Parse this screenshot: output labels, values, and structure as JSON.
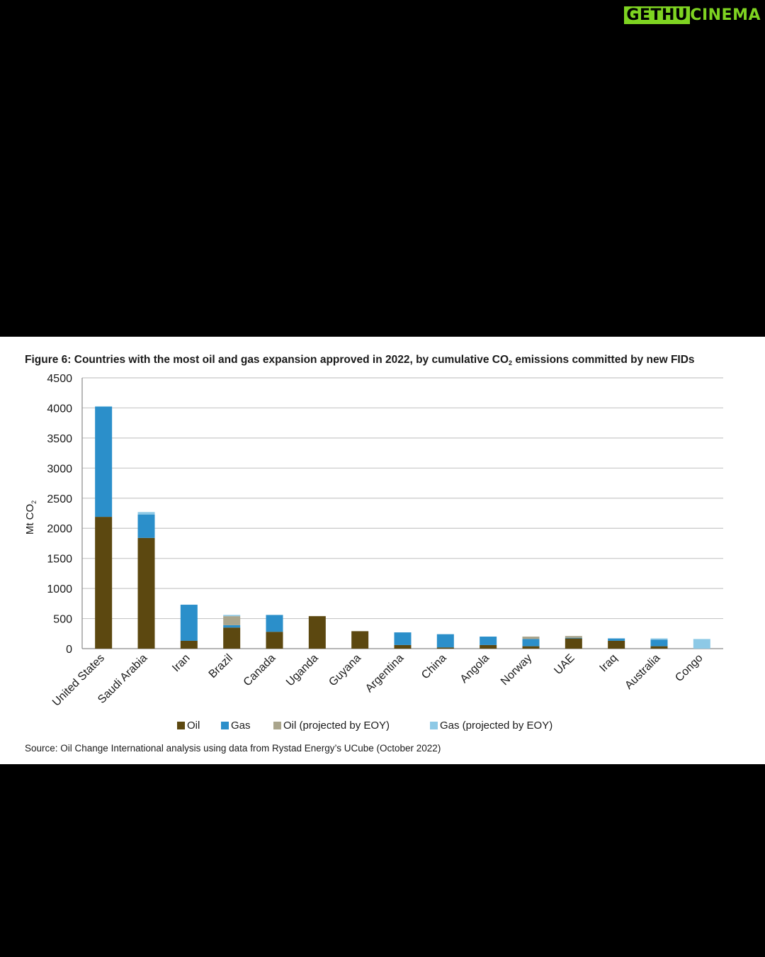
{
  "watermark": {
    "part1": "GETHU",
    "part2": "CINEMA"
  },
  "figure": {
    "title_before": "Figure 6: Countries with the most oil and gas expansion approved in 2022, by cumulative CO",
    "title_sub": "2",
    "title_after": " emissions committed by new FIDs",
    "source": "Source: Oil Change International analysis using data from Rystad Energy’s UCube (October 2022)"
  },
  "chart_data": {
    "type": "bar",
    "stacked": true,
    "title": "Figure 6: Countries with the most oil and gas expansion approved in 2022, by cumulative CO2 emissions committed by new FIDs",
    "ylabel": "Mt CO2",
    "ylim": [
      0,
      4500
    ],
    "yticks": [
      0,
      500,
      1000,
      1500,
      2000,
      2500,
      3000,
      3500,
      4000,
      4500
    ],
    "grid": true,
    "legend_position": "bottom",
    "categories": [
      "United States",
      "Saudi Arabia",
      "Iran",
      "Brazil",
      "Canada",
      "Uganda",
      "Guyana",
      "Argentina",
      "China",
      "Angola",
      "Norway",
      "UAE",
      "Iraq",
      "Australia",
      "Congo"
    ],
    "series": [
      {
        "name": "Oil",
        "color": "#5c4810",
        "values": [
          2190,
          1840,
          130,
          350,
          280,
          540,
          290,
          60,
          20,
          60,
          40,
          170,
          130,
          40,
          0
        ]
      },
      {
        "name": "Gas",
        "color": "#2b8fca",
        "values": [
          1830,
          390,
          600,
          40,
          280,
          0,
          0,
          210,
          220,
          140,
          120,
          10,
          40,
          110,
          0
        ]
      },
      {
        "name": "Oil (projected by EOY)",
        "color": "#aaa58c",
        "values": [
          0,
          0,
          0,
          150,
          0,
          0,
          0,
          0,
          0,
          0,
          40,
          30,
          0,
          0,
          0
        ]
      },
      {
        "name": "Gas (projected by EOY)",
        "color": "#8dc9e6",
        "values": [
          10,
          40,
          0,
          20,
          0,
          0,
          0,
          0,
          0,
          0,
          0,
          0,
          0,
          20,
          160
        ]
      }
    ]
  }
}
